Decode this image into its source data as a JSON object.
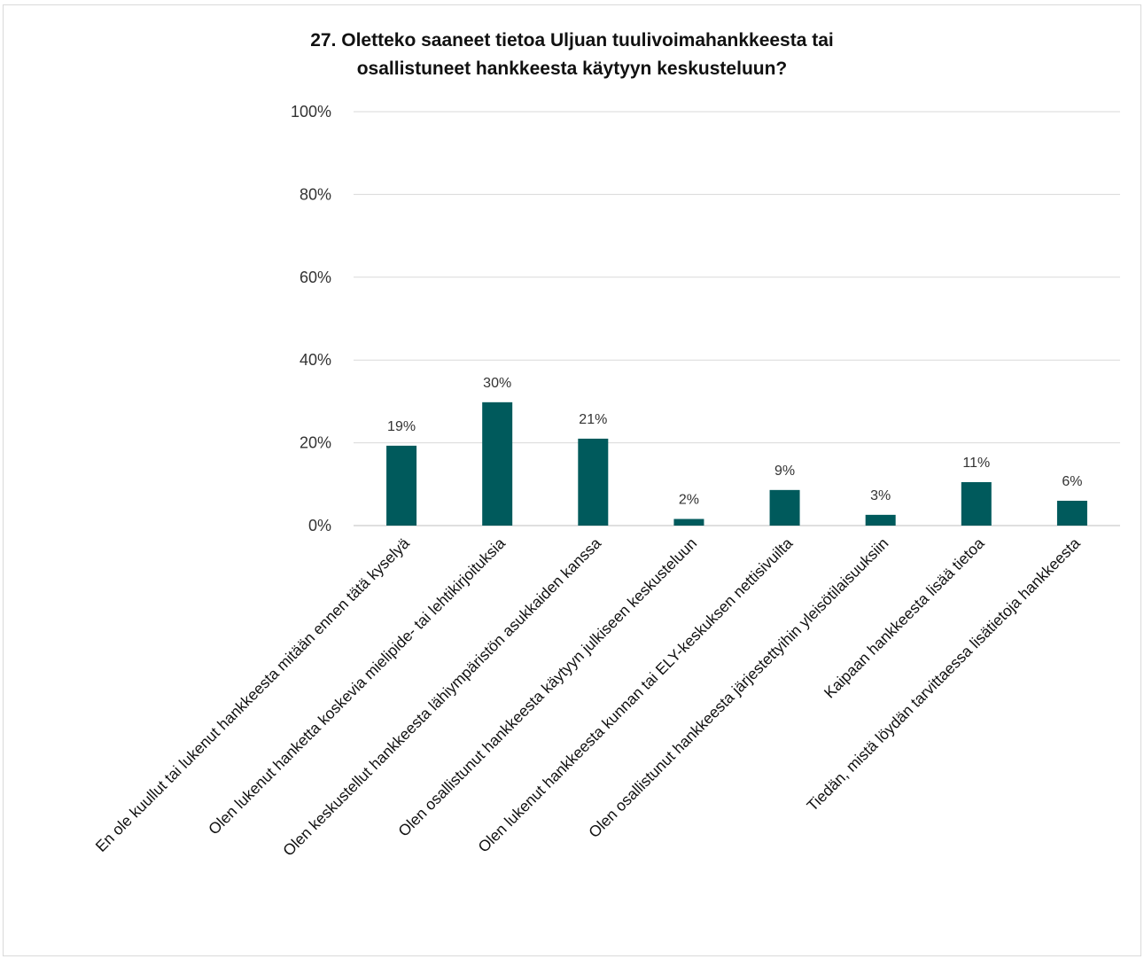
{
  "chart_data": {
    "type": "bar",
    "title_lines": [
      "27. Oletteko saaneet tietoa Uljuan tuulivoimahankkeesta tai",
      "osallistuneet hankkeesta käytyyn keskusteluun?"
    ],
    "categories": [
      "En ole kuullut tai lukenut hankkeesta mitään ennen tätä kyselyä",
      "Olen lukenut hanketta koskevia mielipide- tai lehtikirjoituksia",
      "Olen keskustellut hankkeesta lähiympäristön asukkaiden kanssa",
      "Olen osallistunut hankkeesta käytyyn julkiseen keskusteluun",
      "Olen lukenut hankkeesta kunnan tai ELY-keskuksen nettisivuilta",
      "Olen osallistunut hankkeesta järjestettyihin yleisötilaisuuksiin",
      "Kaipaan hankkeesta lisää tietoa",
      "Tiedän, mistä löydän tarvittaessa lisätietoja hankkeesta"
    ],
    "values": [
      19.3,
      29.8,
      21.0,
      1.6,
      8.6,
      2.6,
      10.5,
      6.0
    ],
    "data_labels": [
      "19%",
      "30%",
      "21%",
      "2%",
      "9%",
      "3%",
      "11%",
      "6%"
    ],
    "ylim": [
      0,
      100
    ],
    "yticks": [
      0,
      20,
      40,
      60,
      80,
      100
    ],
    "ytick_labels": [
      "0%",
      "20%",
      "40%",
      "60%",
      "80%",
      "100%"
    ],
    "bar_color": "#005a5c",
    "grid": true,
    "legend": "none"
  }
}
